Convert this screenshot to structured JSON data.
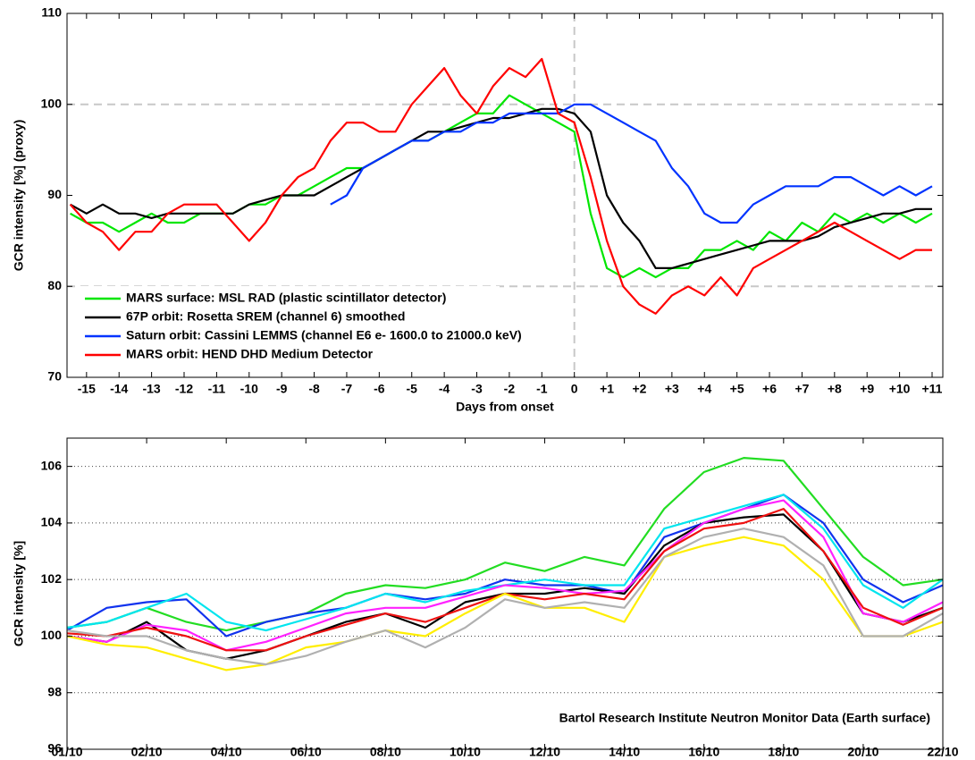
{
  "chart_data": [
    {
      "type": "line",
      "xlabel": "Days from onset",
      "ylabel": "GCR intensity [%] (proxy)",
      "xlim": [
        -15.6,
        11.33
      ],
      "ylim": [
        70,
        110
      ],
      "xticks": [
        -15,
        -14,
        -13,
        -12,
        -11,
        -10,
        -9,
        -8,
        -7,
        -6,
        -5,
        -4,
        -3,
        -2,
        -1,
        0,
        {
          "value": 1,
          "label": "+1"
        },
        {
          "value": 2,
          "label": "+2"
        },
        {
          "value": 3,
          "label": "+3"
        },
        {
          "value": 4,
          "label": "+4"
        },
        {
          "value": 5,
          "label": "+5"
        },
        {
          "value": 6,
          "label": "+6"
        },
        {
          "value": 7,
          "label": "+7"
        },
        {
          "value": 8,
          "label": "+8"
        },
        {
          "value": 9,
          "label": "+9"
        },
        {
          "value": 10,
          "label": "+10"
        },
        {
          "value": 11,
          "label": "+11"
        }
      ],
      "yticks": [
        70,
        80,
        90,
        100,
        110
      ],
      "grid": false,
      "reference_lines": {
        "y": [
          80,
          100
        ],
        "x": [
          0
        ]
      },
      "legend": "lower left",
      "x": [
        -15.5,
        -15,
        -14.5,
        -14,
        -13.5,
        -13,
        -12.5,
        -12,
        -11.5,
        -11,
        -10.5,
        -10,
        -9.5,
        -9,
        -8.5,
        -8,
        -7.5,
        -7,
        -6.5,
        -6,
        -5.5,
        -5,
        -4.5,
        -4,
        -3.5,
        -3,
        -2.5,
        -2,
        -1.5,
        -1,
        -0.5,
        0,
        0.5,
        1,
        1.5,
        2,
        2.5,
        3,
        3.5,
        4,
        4.5,
        5,
        5.5,
        6,
        6.5,
        7,
        7.5,
        8,
        8.5,
        9,
        9.5,
        10,
        10.5,
        11
      ],
      "series": [
        {
          "name": "MARS surface: MSL RAD (plastic scintillator detector)",
          "color": "#00e600",
          "values": [
            88,
            87,
            87,
            86,
            87,
            88,
            87,
            87,
            88,
            88,
            88,
            89,
            89,
            90,
            90,
            91,
            92,
            93,
            93,
            94,
            95,
            96,
            96,
            97,
            98,
            99,
            99,
            101,
            100,
            99,
            98,
            97,
            88,
            82,
            81,
            82,
            81,
            82,
            82,
            84,
            84,
            85,
            84,
            86,
            85,
            87,
            86,
            88,
            87,
            88,
            87,
            88,
            87,
            88
          ]
        },
        {
          "name": "67P orbit: Rosetta SREM (channel 6) smoothed",
          "color": "#000000",
          "values": [
            89,
            88,
            89,
            88,
            88,
            87.5,
            88,
            88,
            88,
            88,
            88,
            89,
            89.5,
            90,
            90,
            90,
            91,
            92,
            93,
            94,
            95,
            96,
            97,
            97,
            97.5,
            98,
            98.5,
            98.5,
            99,
            99.5,
            99.5,
            99,
            97,
            90,
            87,
            85,
            82,
            82,
            82.5,
            83,
            83.5,
            84,
            84.5,
            85,
            85,
            85,
            85.5,
            86.5,
            87,
            87.5,
            88,
            88,
            88.5,
            88.5
          ]
        },
        {
          "name": "Saturn orbit: Cassini LEMMS (channel E6 e- 1600.0 to 21000.0 keV)",
          "color": "#0033ff",
          "values": [
            null,
            null,
            null,
            null,
            null,
            null,
            null,
            null,
            null,
            null,
            null,
            null,
            null,
            null,
            null,
            null,
            89,
            90,
            93,
            94,
            95,
            96,
            96,
            97,
            97,
            98,
            98,
            99,
            99,
            99,
            99,
            100,
            100,
            99,
            98,
            97,
            96,
            93,
            91,
            88,
            87,
            87,
            89,
            90,
            91,
            91,
            91,
            92,
            92,
            91,
            90,
            91,
            90,
            91
          ]
        },
        {
          "name": "MARS orbit: HEND DHD Medium Detector",
          "color": "#ff0000",
          "values": [
            89,
            87,
            86,
            84,
            86,
            86,
            88,
            89,
            89,
            89,
            87,
            85,
            87,
            90,
            92,
            93,
            96,
            98,
            98,
            97,
            97,
            100,
            102,
            104,
            101,
            99,
            102,
            104,
            103,
            105,
            99,
            98,
            92,
            85,
            80,
            78,
            77,
            79,
            80,
            79,
            81,
            79,
            82,
            83,
            84,
            85,
            86,
            87,
            86,
            85,
            84,
            83,
            84,
            84
          ]
        }
      ]
    },
    {
      "type": "line",
      "ylabel": "GCR intensity [%]",
      "annotation": "Bartol Research Institute Neutron Monitor Data (Earth surface)",
      "xlim": [
        0,
        22
      ],
      "ylim": [
        96,
        107
      ],
      "xticks": [
        {
          "value": 0,
          "label": "01/10"
        },
        {
          "value": 2,
          "label": "02/10"
        },
        {
          "value": 4,
          "label": "04/10"
        },
        {
          "value": 6,
          "label": "06/10"
        },
        {
          "value": 8,
          "label": "08/10"
        },
        {
          "value": 10,
          "label": "10/10"
        },
        {
          "value": 12,
          "label": "12/10"
        },
        {
          "value": 14,
          "label": "14/10"
        },
        {
          "value": 16,
          "label": "16/10"
        },
        {
          "value": 18,
          "label": "18/10"
        },
        {
          "value": 20,
          "label": "20/10"
        },
        {
          "value": 22,
          "label": "22/10"
        }
      ],
      "yticks": [
        96,
        98,
        100,
        102,
        104,
        106
      ],
      "grid": true,
      "x": [
        0,
        1,
        2,
        3,
        4,
        5,
        6,
        7,
        8,
        9,
        10,
        11,
        12,
        13,
        14,
        15,
        16,
        17,
        18,
        19,
        20,
        21,
        22
      ],
      "series": [
        {
          "color": "#22dd22",
          "values": [
            100.3,
            100.5,
            101.0,
            100.5,
            100.2,
            100.5,
            100.8,
            101.5,
            101.8,
            101.7,
            102.0,
            102.6,
            102.3,
            102.8,
            102.5,
            104.5,
            105.8,
            106.3,
            106.2,
            104.5,
            102.8,
            101.8,
            102.0
          ]
        },
        {
          "color": "#1133ee",
          "values": [
            100.2,
            101.0,
            101.2,
            101.3,
            100.0,
            100.5,
            100.8,
            101.0,
            101.5,
            101.3,
            101.5,
            102.0,
            101.8,
            101.8,
            101.5,
            103.5,
            104.0,
            104.5,
            105.0,
            104.0,
            102.0,
            101.2,
            101.8
          ]
        },
        {
          "color": "#00e5ee",
          "values": [
            100.3,
            100.5,
            101.0,
            101.5,
            100.5,
            100.2,
            100.6,
            101.0,
            101.5,
            101.2,
            101.6,
            101.8,
            102.0,
            101.8,
            101.8,
            103.8,
            104.2,
            104.6,
            105.0,
            103.8,
            101.8,
            101.0,
            102.0
          ]
        },
        {
          "color": "#000000",
          "values": [
            100.0,
            99.8,
            100.5,
            99.5,
            99.2,
            99.5,
            100.0,
            100.5,
            100.8,
            100.3,
            101.2,
            101.5,
            101.5,
            101.7,
            101.5,
            103.2,
            104.0,
            104.2,
            104.3,
            103.0,
            100.8,
            100.5,
            101.0
          ]
        },
        {
          "color": "#ff22ff",
          "values": [
            100.0,
            99.8,
            100.4,
            100.2,
            99.5,
            99.8,
            100.3,
            100.8,
            101.0,
            101.0,
            101.4,
            101.8,
            101.7,
            101.5,
            101.6,
            103.0,
            104.0,
            104.5,
            104.8,
            103.5,
            100.8,
            100.5,
            101.2
          ]
        },
        {
          "color": "#ee1111",
          "values": [
            100.1,
            100.0,
            100.3,
            100.0,
            99.5,
            99.5,
            100.0,
            100.4,
            100.8,
            100.5,
            101.0,
            101.5,
            101.3,
            101.5,
            101.3,
            103.0,
            103.8,
            104.0,
            104.5,
            103.0,
            101.0,
            100.4,
            101.0
          ]
        },
        {
          "color": "#ffee00",
          "values": [
            100.0,
            99.7,
            99.6,
            99.2,
            98.8,
            99.0,
            99.6,
            99.8,
            100.2,
            100.0,
            100.8,
            101.5,
            101.0,
            101.0,
            100.5,
            102.8,
            103.2,
            103.5,
            103.2,
            102.0,
            100.0,
            100.0,
            100.5
          ]
        },
        {
          "color": "#b0b0b0",
          "values": [
            100.2,
            100.0,
            100.0,
            99.5,
            99.2,
            99.0,
            99.3,
            99.8,
            100.2,
            99.6,
            100.3,
            101.3,
            101.0,
            101.2,
            101.0,
            102.8,
            103.5,
            103.8,
            103.5,
            102.5,
            100.0,
            100.0,
            100.8
          ]
        }
      ]
    }
  ]
}
